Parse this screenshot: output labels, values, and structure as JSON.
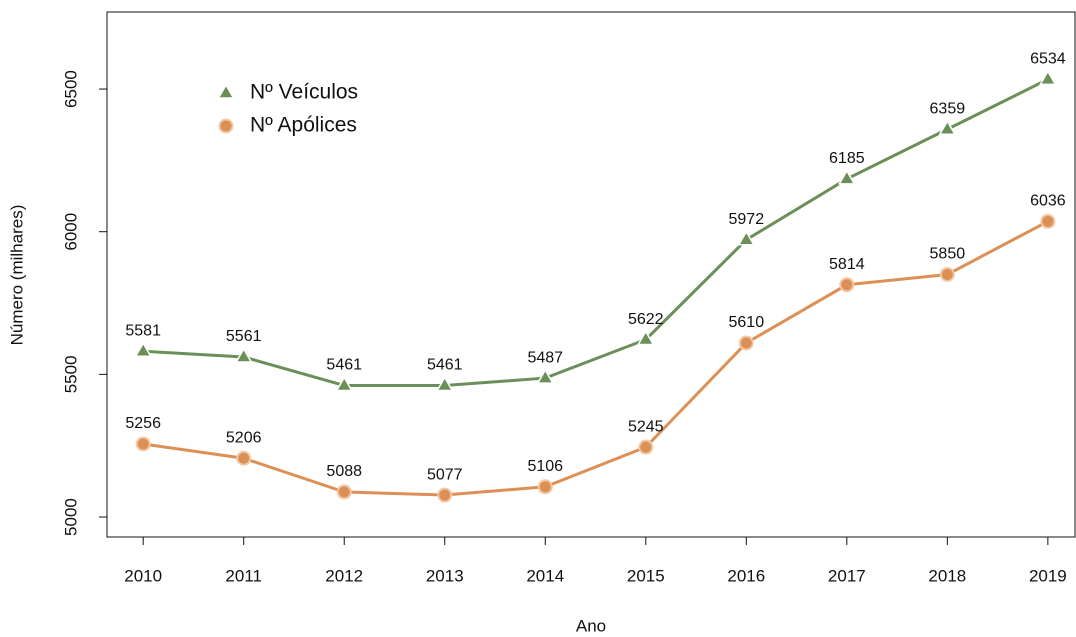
{
  "chart_data": {
    "type": "line",
    "x_label": "Ano",
    "y_label": "Número (milhares)",
    "x": [
      2010,
      2011,
      2012,
      2013,
      2014,
      2015,
      2016,
      2017,
      2018,
      2019
    ],
    "series": [
      {
        "name": "Nº Veículos",
        "color": "#6b8f58",
        "marker": "triangle",
        "values": [
          5581,
          5561,
          5461,
          5461,
          5487,
          5622,
          5972,
          6185,
          6359,
          6534
        ]
      },
      {
        "name": "Nº Apólices",
        "color": "#dd9055",
        "marker": "circle",
        "values": [
          5256,
          5206,
          5088,
          5077,
          5106,
          5245,
          5610,
          5814,
          5850,
          6036
        ]
      }
    ],
    "xlim": [
      2009.64,
      2019.27
    ],
    "xticks": [
      2010,
      2011,
      2012,
      2013,
      2014,
      2015,
      2016,
      2017,
      2018,
      2019
    ],
    "ylim": [
      4930,
      6770
    ],
    "yticks": [
      5000,
      5500,
      6000,
      6500
    ],
    "legend": "top-left"
  }
}
